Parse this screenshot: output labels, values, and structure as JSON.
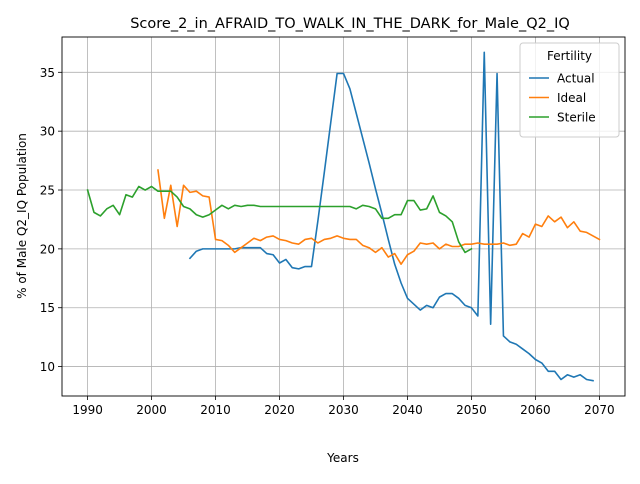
{
  "chart_data": {
    "type": "line",
    "title": "Score_2_in_AFRAID_TO_WALK_IN_THE_DARK_for_Male_Q2_IQ",
    "xlabel": "Years",
    "ylabel": "% of Male Q2_IQ Population",
    "xlim": [
      1986.0,
      2074.0
    ],
    "ylim": [
      7.5,
      38.0
    ],
    "x_ticks": [
      1990,
      2000,
      2010,
      2020,
      2030,
      2040,
      2050,
      2060,
      2070
    ],
    "y_ticks": [
      10,
      15,
      20,
      25,
      30,
      35
    ],
    "grid": true,
    "legend": {
      "title": "Fertility",
      "placement": "upper right",
      "entries": [
        "Actual",
        "Ideal",
        "Sterile"
      ]
    },
    "series": [
      {
        "name": "Actual",
        "color": "#1f77b4",
        "points": [
          [
            2006,
            19.2
          ],
          [
            2007,
            19.8
          ],
          [
            2008,
            20.0
          ],
          [
            2009,
            20.0
          ],
          [
            2010,
            20.0
          ],
          [
            2011,
            20.0
          ],
          [
            2012,
            20.0
          ],
          [
            2013,
            20.0
          ],
          [
            2014,
            20.1
          ],
          [
            2015,
            20.1
          ],
          [
            2016,
            20.1
          ],
          [
            2017,
            20.1
          ],
          [
            2018,
            19.6
          ],
          [
            2019,
            19.5
          ],
          [
            2020,
            18.8
          ],
          [
            2021,
            19.1
          ],
          [
            2022,
            18.4
          ],
          [
            2023,
            18.3
          ],
          [
            2024,
            18.5
          ],
          [
            2025,
            18.5
          ],
          [
            2026,
            22.4
          ],
          [
            2027,
            26.5
          ],
          [
            2028,
            30.7
          ],
          [
            2029,
            34.9
          ],
          [
            2030,
            34.9
          ],
          [
            2031,
            33.6
          ],
          [
            2032,
            31.5
          ],
          [
            2033,
            29.4
          ],
          [
            2034,
            27.3
          ],
          [
            2035,
            25.1
          ],
          [
            2036,
            23.0
          ],
          [
            2037,
            20.8
          ],
          [
            2038,
            18.7
          ],
          [
            2039,
            17.1
          ],
          [
            2040,
            15.8
          ],
          [
            2041,
            15.3
          ],
          [
            2042,
            14.8
          ],
          [
            2043,
            15.2
          ],
          [
            2044,
            15.0
          ],
          [
            2045,
            15.9
          ],
          [
            2046,
            16.2
          ],
          [
            2047,
            16.2
          ],
          [
            2048,
            15.8
          ],
          [
            2049,
            15.2
          ],
          [
            2050,
            15.0
          ],
          [
            2051,
            14.3
          ],
          [
            2052,
            36.7
          ],
          [
            2053,
            13.6
          ],
          [
            2054,
            34.9
          ],
          [
            2055,
            12.6
          ],
          [
            2056,
            12.1
          ],
          [
            2057,
            11.9
          ],
          [
            2058,
            11.5
          ],
          [
            2059,
            11.1
          ],
          [
            2060,
            10.6
          ],
          [
            2061,
            10.3
          ],
          [
            2062,
            9.6
          ],
          [
            2063,
            9.6
          ],
          [
            2064,
            8.9
          ],
          [
            2065,
            9.3
          ],
          [
            2066,
            9.1
          ],
          [
            2067,
            9.3
          ],
          [
            2068,
            8.9
          ],
          [
            2069,
            8.8
          ]
        ]
      },
      {
        "name": "Ideal",
        "color": "#ff7f0e",
        "points": [
          [
            2001,
            26.7
          ],
          [
            2002,
            22.6
          ],
          [
            2003,
            25.4
          ],
          [
            2004,
            21.9
          ],
          [
            2005,
            25.4
          ],
          [
            2006,
            24.8
          ],
          [
            2007,
            24.9
          ],
          [
            2008,
            24.5
          ],
          [
            2009,
            24.4
          ],
          [
            2010,
            20.8
          ],
          [
            2011,
            20.7
          ],
          [
            2012,
            20.3
          ],
          [
            2013,
            19.7
          ],
          [
            2014,
            20.1
          ],
          [
            2015,
            20.5
          ],
          [
            2016,
            20.9
          ],
          [
            2017,
            20.7
          ],
          [
            2018,
            21.0
          ],
          [
            2019,
            21.1
          ],
          [
            2020,
            20.8
          ],
          [
            2021,
            20.7
          ],
          [
            2022,
            20.5
          ],
          [
            2023,
            20.4
          ],
          [
            2024,
            20.8
          ],
          [
            2025,
            20.9
          ],
          [
            2026,
            20.5
          ],
          [
            2027,
            20.8
          ],
          [
            2028,
            20.9
          ],
          [
            2029,
            21.1
          ],
          [
            2030,
            20.9
          ],
          [
            2031,
            20.8
          ],
          [
            2032,
            20.8
          ],
          [
            2033,
            20.3
          ],
          [
            2034,
            20.1
          ],
          [
            2035,
            19.7
          ],
          [
            2036,
            20.1
          ],
          [
            2037,
            19.3
          ],
          [
            2038,
            19.6
          ],
          [
            2039,
            18.7
          ],
          [
            2040,
            19.5
          ],
          [
            2041,
            19.8
          ],
          [
            2042,
            20.5
          ],
          [
            2043,
            20.4
          ],
          [
            2044,
            20.5
          ],
          [
            2045,
            20.0
          ],
          [
            2046,
            20.4
          ],
          [
            2047,
            20.2
          ],
          [
            2048,
            20.2
          ],
          [
            2049,
            20.4
          ],
          [
            2050,
            20.4
          ],
          [
            2051,
            20.5
          ],
          [
            2052,
            20.4
          ],
          [
            2053,
            20.4
          ],
          [
            2054,
            20.4
          ],
          [
            2055,
            20.5
          ],
          [
            2056,
            20.3
          ],
          [
            2057,
            20.4
          ],
          [
            2058,
            21.3
          ],
          [
            2059,
            21.0
          ],
          [
            2060,
            22.1
          ],
          [
            2061,
            21.9
          ],
          [
            2062,
            22.8
          ],
          [
            2063,
            22.3
          ],
          [
            2064,
            22.7
          ],
          [
            2065,
            21.8
          ],
          [
            2066,
            22.3
          ],
          [
            2067,
            21.5
          ],
          [
            2068,
            21.4
          ],
          [
            2069,
            21.1
          ],
          [
            2070,
            20.8
          ]
        ]
      },
      {
        "name": "Sterile",
        "color": "#2ca02c",
        "points": [
          [
            1990,
            25.0
          ],
          [
            1991,
            23.1
          ],
          [
            1992,
            22.8
          ],
          [
            1993,
            23.4
          ],
          [
            1994,
            23.7
          ],
          [
            1995,
            22.9
          ],
          [
            1996,
            24.6
          ],
          [
            1997,
            24.4
          ],
          [
            1998,
            25.3
          ],
          [
            1999,
            25.0
          ],
          [
            2000,
            25.3
          ],
          [
            2001,
            24.9
          ],
          [
            2002,
            24.9
          ],
          [
            2003,
            24.9
          ],
          [
            2004,
            24.4
          ],
          [
            2005,
            23.6
          ],
          [
            2006,
            23.4
          ],
          [
            2007,
            22.9
          ],
          [
            2008,
            22.7
          ],
          [
            2009,
            22.9
          ],
          [
            2010,
            23.3
          ],
          [
            2011,
            23.7
          ],
          [
            2012,
            23.4
          ],
          [
            2013,
            23.7
          ],
          [
            2014,
            23.6
          ],
          [
            2015,
            23.7
          ],
          [
            2016,
            23.7
          ],
          [
            2017,
            23.6
          ],
          [
            2018,
            23.6
          ],
          [
            2019,
            23.6
          ],
          [
            2020,
            23.6
          ],
          [
            2021,
            23.6
          ],
          [
            2022,
            23.6
          ],
          [
            2023,
            23.6
          ],
          [
            2024,
            23.6
          ],
          [
            2025,
            23.6
          ],
          [
            2026,
            23.6
          ],
          [
            2027,
            23.6
          ],
          [
            2028,
            23.6
          ],
          [
            2029,
            23.6
          ],
          [
            2030,
            23.6
          ],
          [
            2031,
            23.6
          ],
          [
            2032,
            23.4
          ],
          [
            2033,
            23.7
          ],
          [
            2034,
            23.6
          ],
          [
            2035,
            23.4
          ],
          [
            2036,
            22.6
          ],
          [
            2037,
            22.6
          ],
          [
            2038,
            22.9
          ],
          [
            2039,
            22.9
          ],
          [
            2040,
            24.1
          ],
          [
            2041,
            24.1
          ],
          [
            2042,
            23.3
          ],
          [
            2043,
            23.4
          ],
          [
            2044,
            24.5
          ],
          [
            2045,
            23.1
          ],
          [
            2046,
            22.8
          ],
          [
            2047,
            22.3
          ],
          [
            2048,
            20.6
          ],
          [
            2049,
            19.7
          ],
          [
            2050,
            20.0
          ]
        ]
      }
    ]
  }
}
